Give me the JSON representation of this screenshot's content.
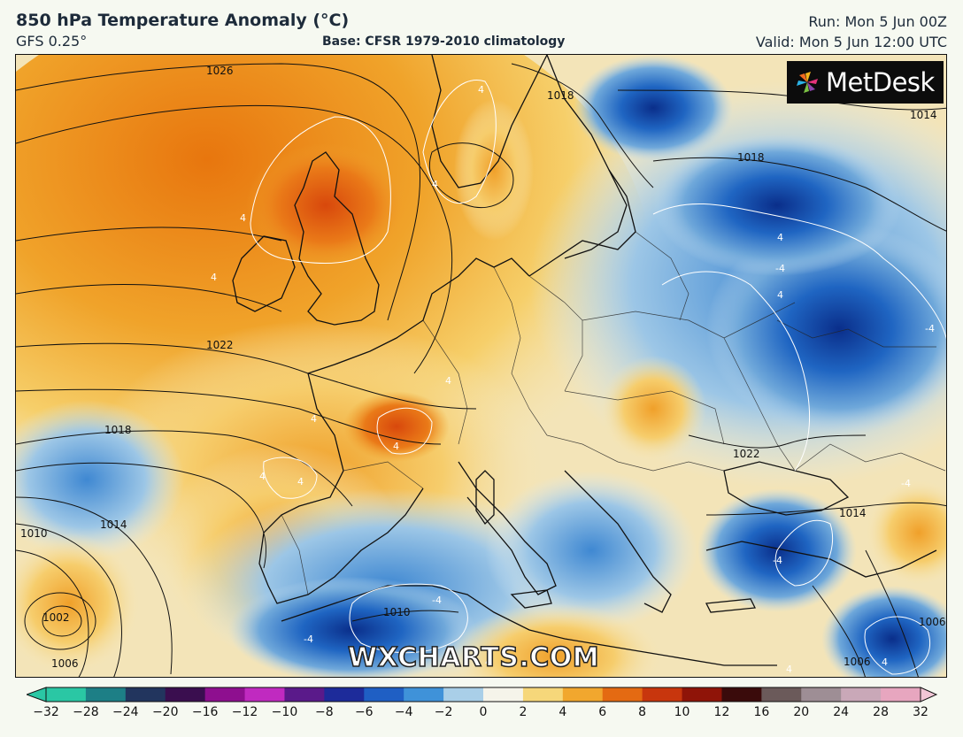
{
  "header": {
    "title": "850 hPa Temperature Anomaly (°C)",
    "model": "GFS 0.25°",
    "base": "Base: CFSR 1979-2010 climatology",
    "run": "Run: Mon 5 Jun 00Z",
    "valid": "Valid: Mon 5 Jun 12:00 UTC"
  },
  "logo": {
    "text": "MetDesk",
    "icon": "pinwheel-icon"
  },
  "watermark": "WXCHARTS.COM",
  "map": {
    "region": "Europe",
    "isobar_labels": [
      "1026",
      "1018",
      "1014",
      "1018",
      "1022",
      "1018",
      "1014",
      "1010",
      "1002",
      "1006",
      "1010",
      "1022",
      "1014",
      "1006",
      "1006"
    ],
    "anomaly_labels": [
      "4",
      "4",
      "4",
      "4",
      "4",
      "4",
      "4",
      "4",
      "4",
      "4",
      "-4",
      "-4",
      "-4",
      "4",
      "4",
      "-4",
      "4",
      "4",
      "-4",
      "-4"
    ]
  },
  "colorbar": {
    "tick_labels": [
      "−32",
      "−28",
      "−24",
      "−20",
      "−16",
      "−12",
      "−10",
      "−8",
      "−6",
      "−4",
      "−2",
      "0",
      "2",
      "4",
      "6",
      "8",
      "10",
      "12",
      "16",
      "20",
      "24",
      "28",
      "32"
    ],
    "colors": [
      "#2ac7a4",
      "#1d7f86",
      "#22355e",
      "#3a0e4f",
      "#8e0f8f",
      "#c02ac0",
      "#5a1a8a",
      "#1d2b9a",
      "#1f5fc4",
      "#3f92d9",
      "#a9cfe8",
      "#f5f4ea",
      "#f6d77a",
      "#f1a72e",
      "#e46a12",
      "#c8360d",
      "#8f1408",
      "#3a0b0b",
      "#6b5a5a",
      "#9e8e95",
      "#c9a8b8",
      "#e7a6bf",
      "#f2c6d6"
    ]
  }
}
